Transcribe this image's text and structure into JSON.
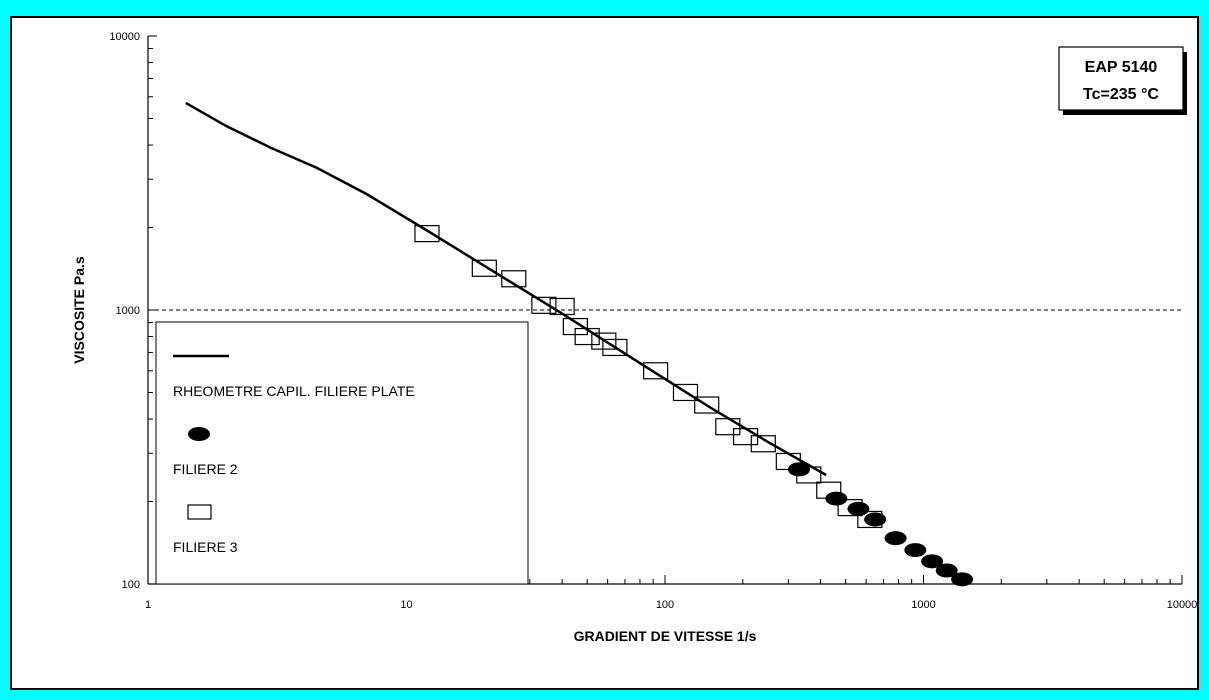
{
  "top_strip_text": "",
  "chart_data": {
    "type": "scatter",
    "title": "",
    "xlabel": "GRADIENT DE VITESSE 1/s",
    "ylabel": "VISCOSITE Pa.s",
    "xscale": "log",
    "yscale": "log",
    "xlim": [
      1,
      10000
    ],
    "ylim": [
      100,
      10000
    ],
    "x_tick_labels": [
      "1",
      "10",
      "100",
      "1000",
      "10000"
    ],
    "y_tick_labels": [
      "100",
      "1000",
      "10000"
    ],
    "reference_line": {
      "y": 1000,
      "style": "dashed"
    },
    "info_box": {
      "line1": "EAP 5140",
      "line2": "Tc=235 °C",
      "placement": "top-right"
    },
    "legend_placement": "bottom-left",
    "series": [
      {
        "name": "RHEOMETRE CAPIL. FILIERE PLATE",
        "style": "line",
        "color": "#000000",
        "x": [
          1.4,
          2.0,
          3.0,
          4.5,
          7.0,
          12.0,
          20.0,
          40.0,
          80.0,
          150.0,
          250.0,
          420.0
        ],
        "y": [
          5700,
          4700,
          3900,
          3300,
          2650,
          1950,
          1450,
          970,
          640,
          440,
          330,
          250
        ]
      },
      {
        "name": "FILIERE 2",
        "style": "filled-ellipse",
        "color": "#000000",
        "x": [
          330,
          460,
          560,
          650,
          780,
          930,
          1080,
          1230,
          1410
        ],
        "y": [
          262,
          205,
          188,
          172,
          147,
          133,
          121,
          112,
          104
        ]
      },
      {
        "name": "FILIERE 3",
        "style": "open-square",
        "color": "#000000",
        "x": [
          12,
          20,
          26,
          34,
          40,
          45,
          50,
          58,
          64,
          92,
          120,
          145,
          175,
          205,
          240,
          300,
          360,
          430,
          520,
          620
        ],
        "y": [
          1900,
          1420,
          1300,
          1040,
          1030,
          870,
          800,
          770,
          730,
          600,
          500,
          450,
          375,
          345,
          325,
          280,
          250,
          220,
          190,
          172
        ]
      }
    ]
  }
}
